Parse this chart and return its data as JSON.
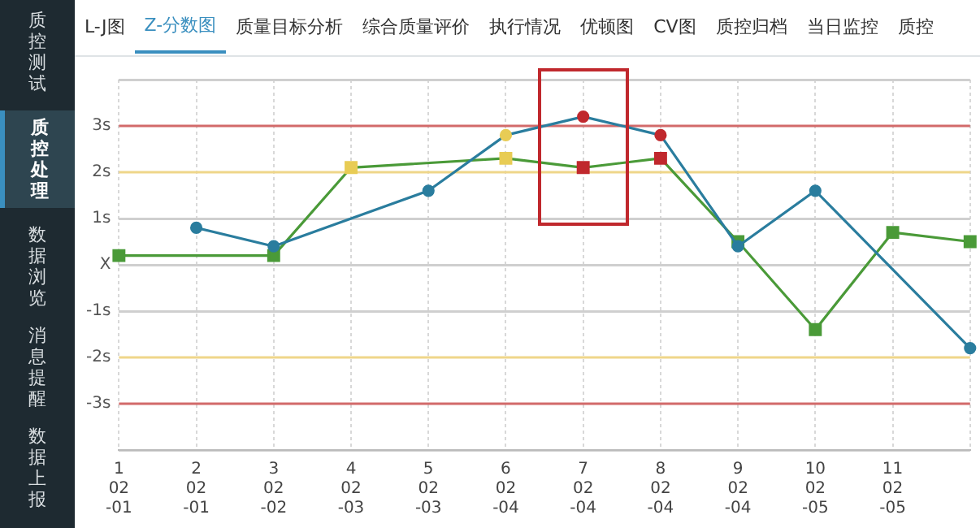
{
  "chart_data": [
    {
      "type": "other",
      "annotations": [
        "质控测试",
        "质控处理",
        "数据浏览",
        "消息提醒",
        "数据上报"
      ]
    },
    {
      "type": "other",
      "annotations": [
        "L-J图",
        "Z-分数图",
        "质量目标分析",
        "综合质量评价",
        "执行情况",
        "优顿图",
        "CV图",
        "质控归档",
        "当日监控",
        "质控"
      ]
    },
    {
      "type": "line",
      "categories": [
        "1\n02\n-01",
        "2\n02\n-01",
        "3\n02\n-02",
        "4\n02\n-03",
        "5\n02\n-03",
        "6\n02\n-04",
        "7\n02\n-04",
        "8\n02\n-04",
        "9\n02\n-04",
        "10\n02\n-05",
        "11\n02\n-05",
        null
      ],
      "series": [
        {
          "color": "#2a7d9e",
          "marker": "circle",
          "values": [
            null,
            0.8,
            0.4,
            null,
            1.6,
            2.8,
            3.2,
            2.8,
            0.4,
            1.6,
            null,
            -1.8
          ],
          "colors": [
            "#2a7d9e",
            "#2a7d9e",
            "#2a7d9e",
            "#2a7d9e",
            "#2a7d9e",
            "#e8cc55",
            "#c0282d",
            "#c0282d",
            "#2a7d9e",
            "#2a7d9e",
            "#2a7d9e",
            "#2a7d9e"
          ]
        },
        {
          "color": "#4a9a38",
          "marker": "square",
          "values": [
            0.2,
            null,
            0.2,
            2.1,
            null,
            2.3,
            2.1,
            2.3,
            0.5,
            -1.4,
            0.7,
            0.5
          ],
          "colors": [
            "#4a9a38",
            "#4a9a38",
            "#4a9a38",
            "#e8cc55",
            "#4a9a38",
            "#e8cc55",
            "#c0282d",
            "#c0282d",
            "#4a9a38",
            "#4a9a38",
            "#4a9a38",
            "#4a9a38"
          ]
        }
      ],
      "ylim": [
        -4,
        4
      ],
      "yticks": [
        {
          "value": -4,
          "label": null
        },
        {
          "value": -3,
          "label": "-3s"
        },
        {
          "value": -2,
          "label": "-2s"
        },
        {
          "value": -1,
          "label": "-1s"
        },
        {
          "value": 0,
          "label": "X"
        },
        {
          "value": 1,
          "label": "1s"
        },
        {
          "value": 2,
          "label": "2s"
        },
        {
          "value": 3,
          "label": "3s"
        },
        {
          "value": 4,
          "label": null
        }
      ],
      "grid": true,
      "ref_lines": [
        {
          "axis": "y",
          "value": 3,
          "color": "#d26a6a"
        },
        {
          "axis": "y",
          "value": 2,
          "color": "#efd68a"
        },
        {
          "axis": "y",
          "value": -2,
          "color": "#efd68a"
        },
        {
          "axis": "y",
          "value": -3,
          "color": "#d26a6a"
        }
      ],
      "legend": false
    }
  ]
}
